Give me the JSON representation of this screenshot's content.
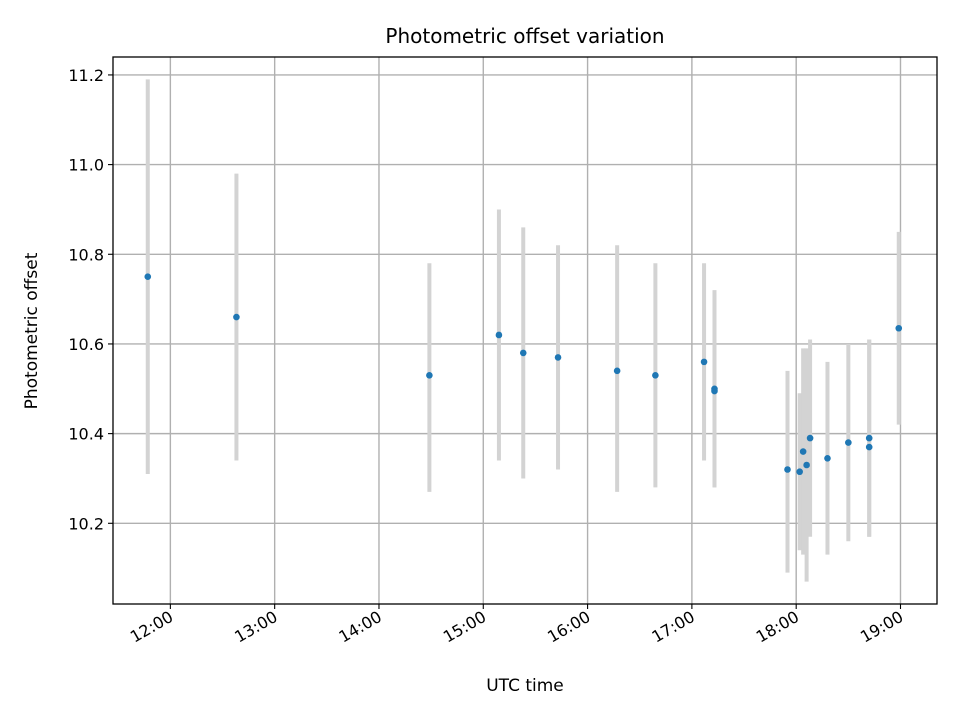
{
  "chart_data": {
    "type": "scatter",
    "title": "Photometric offset variation",
    "xlabel": "UTC time",
    "ylabel": "Photometric offset",
    "x_ticks": [
      "12:00",
      "13:00",
      "14:00",
      "15:00",
      "16:00",
      "17:00",
      "18:00",
      "19:00"
    ],
    "y_ticks": [
      "10.2",
      "10.4",
      "10.6",
      "10.8",
      "11.0",
      "11.2"
    ],
    "xlim": [
      "11:27",
      "19:21"
    ],
    "ylim": [
      10.02,
      11.24
    ],
    "grid": true,
    "marker_color": "#1f77b4",
    "errorbar_color": "#d3d3d3",
    "series": [
      {
        "points": [
          {
            "x": "11:47",
            "y": 10.75,
            "low": 10.31,
            "high": 11.19
          },
          {
            "x": "12:38",
            "y": 10.66,
            "low": 10.34,
            "high": 10.98
          },
          {
            "x": "14:29",
            "y": 10.53,
            "low": 10.27,
            "high": 10.78
          },
          {
            "x": "15:09",
            "y": 10.62,
            "low": 10.34,
            "high": 10.9
          },
          {
            "x": "15:23",
            "y": 10.58,
            "low": 10.3,
            "high": 10.86
          },
          {
            "x": "15:43",
            "y": 10.57,
            "low": 10.32,
            "high": 10.82
          },
          {
            "x": "16:17",
            "y": 10.54,
            "low": 10.27,
            "high": 10.82
          },
          {
            "x": "16:39",
            "y": 10.53,
            "low": 10.28,
            "high": 10.78
          },
          {
            "x": "17:07",
            "y": 10.56,
            "low": 10.34,
            "high": 10.78
          },
          {
            "x": "17:13",
            "y": 10.5,
            "low": 10.28,
            "high": 10.72
          },
          {
            "x": "17:13",
            "y": 10.495,
            "low": 10.28,
            "high": 10.71
          },
          {
            "x": "17:55",
            "y": 10.32,
            "low": 10.09,
            "high": 10.54
          },
          {
            "x": "18:02",
            "y": 10.315,
            "low": 10.14,
            "high": 10.49
          },
          {
            "x": "18:04",
            "y": 10.36,
            "low": 10.13,
            "high": 10.59
          },
          {
            "x": "18:06",
            "y": 10.33,
            "low": 10.07,
            "high": 10.59
          },
          {
            "x": "18:08",
            "y": 10.39,
            "low": 10.17,
            "high": 10.61
          },
          {
            "x": "18:18",
            "y": 10.345,
            "low": 10.13,
            "high": 10.56
          },
          {
            "x": "18:30",
            "y": 10.38,
            "low": 10.16,
            "high": 10.6
          },
          {
            "x": "18:42",
            "y": 10.39,
            "low": 10.17,
            "high": 10.61
          },
          {
            "x": "18:42",
            "y": 10.37,
            "low": 10.17,
            "high": 10.61
          },
          {
            "x": "18:59",
            "y": 10.635,
            "low": 10.42,
            "high": 10.85
          }
        ]
      }
    ]
  }
}
